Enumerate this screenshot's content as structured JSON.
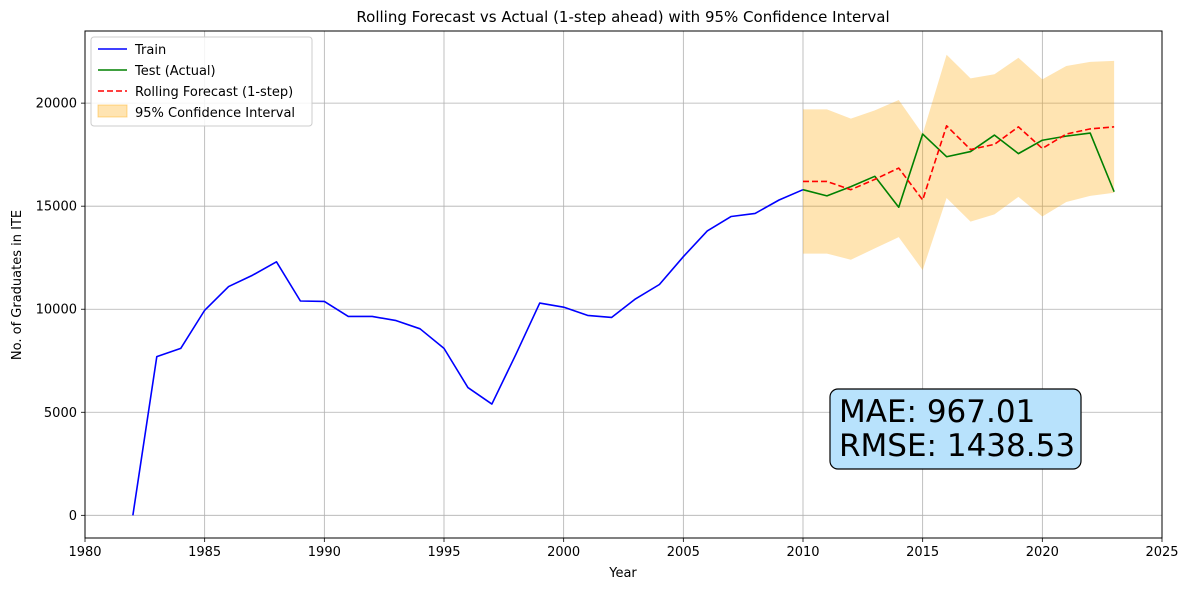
{
  "chart_data": {
    "type": "line",
    "title": "Rolling Forecast vs Actual (1-step ahead) with 95% Confidence Interval",
    "xlabel": "Year",
    "ylabel": "No. of Graduates in ITE",
    "xlim": [
      1980,
      2025
    ],
    "ylim": [
      -1100,
      23500
    ],
    "xticks": [
      1980,
      1985,
      1990,
      1995,
      2000,
      2005,
      2010,
      2015,
      2020,
      2025
    ],
    "yticks": [
      0,
      5000,
      10000,
      15000,
      20000
    ],
    "grid": true,
    "legend_position": "top-left",
    "series": [
      {
        "name": "Train",
        "color": "#0000ff",
        "style": "solid",
        "x": [
          1982,
          1983,
          1984,
          1985,
          1986,
          1987,
          1988,
          1989,
          1990,
          1991,
          1992,
          1993,
          1994,
          1995,
          1996,
          1997,
          1998,
          1999,
          2000,
          2001,
          2002,
          2003,
          2004,
          2005,
          2006,
          2007,
          2008,
          2009,
          2010
        ],
        "values": [
          0,
          7700,
          8100,
          9950,
          11100,
          11650,
          12300,
          10400,
          10380,
          9650,
          9650,
          9450,
          9050,
          8100,
          6200,
          5400,
          7800,
          10300,
          10100,
          9700,
          9600,
          10500,
          11200,
          12550,
          13800,
          14500,
          14650,
          15300,
          15800
        ]
      },
      {
        "name": "Test (Actual)",
        "color": "#008000",
        "style": "solid",
        "x": [
          2010,
          2011,
          2012,
          2013,
          2014,
          2015,
          2016,
          2017,
          2018,
          2019,
          2020,
          2021,
          2022,
          2023
        ],
        "values": [
          15800,
          15500,
          15950,
          16450,
          14950,
          18500,
          17400,
          17650,
          18450,
          17550,
          18200,
          18400,
          18550,
          15700
        ]
      },
      {
        "name": "Rolling Forecast (1-step)",
        "color": "#ff0000",
        "style": "dashed",
        "x": [
          2010,
          2011,
          2012,
          2013,
          2014,
          2015,
          2016,
          2017,
          2018,
          2019,
          2020,
          2021,
          2022,
          2023
        ],
        "values": [
          16200,
          16200,
          15800,
          16300,
          16850,
          15300,
          18900,
          17750,
          18000,
          18850,
          17800,
          18500,
          18750,
          18850
        ]
      }
    ],
    "confidence_interval": {
      "name": "95% Confidence Interval",
      "color": "#ffa500",
      "x": [
        2010,
        2011,
        2012,
        2013,
        2014,
        2015,
        2016,
        2017,
        2018,
        2019,
        2020,
        2021,
        2022,
        2023
      ],
      "lower": [
        12700,
        12700,
        12400,
        12950,
        13500,
        11900,
        15400,
        14250,
        14600,
        15450,
        14500,
        15200,
        15500,
        15650
      ],
      "upper": [
        19700,
        19700,
        19250,
        19650,
        20150,
        18500,
        22350,
        21200,
        21400,
        22200,
        21150,
        21800,
        22000,
        22050
      ]
    },
    "annotation": {
      "mae_text": "MAE: 967.01",
      "rmse_text": "RMSE: 1438.53",
      "box_color": "#b8e2fc"
    }
  }
}
